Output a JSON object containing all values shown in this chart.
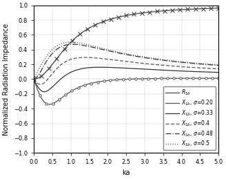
{
  "xlabel": "ka",
  "ylabel": "Normalized Radiation Impedance",
  "xlim": [
    0,
    5
  ],
  "ylim": [
    -1,
    1
  ],
  "xticks": [
    0,
    0.5,
    1,
    1.5,
    2,
    2.5,
    3,
    3.5,
    4,
    4.5,
    5
  ],
  "yticks": [
    -1,
    -0.8,
    -0.6,
    -0.4,
    -0.2,
    0,
    0.2,
    0.4,
    0.6,
    0.8,
    1
  ],
  "sigmas": [
    0.2,
    0.33,
    0.4,
    0.48,
    0.5
  ],
  "figsize": [
    3.28,
    2.59
  ],
  "dpi": 100,
  "R_color": "#444444",
  "X_color": "#666666",
  "line_color": "#555555",
  "legend_fontsize": 5.5,
  "tick_labelsize": 6,
  "label_fontsize": 7
}
